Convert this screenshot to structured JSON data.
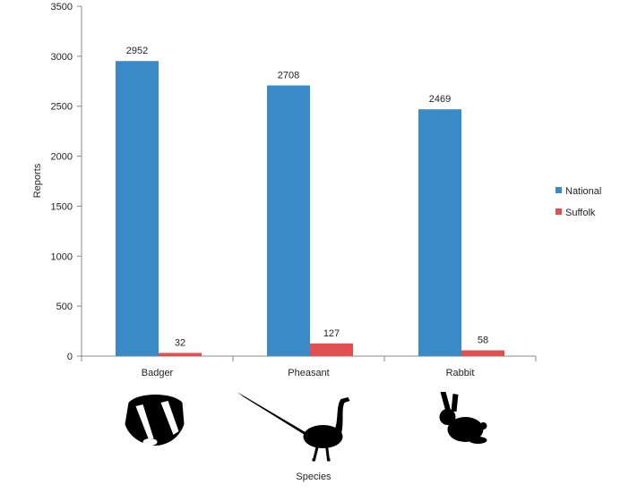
{
  "chart_data": {
    "type": "bar",
    "title": "",
    "xlabel": "Species",
    "ylabel": "Reports",
    "categories": [
      "Badger",
      "Pheasant",
      "Rabbit"
    ],
    "series": [
      {
        "name": "National",
        "values": [
          2952,
          2708,
          2469
        ],
        "color": "#3a8ac8"
      },
      {
        "name": "Suffolk",
        "values": [
          32,
          127,
          58
        ],
        "color": "#e05050"
      }
    ],
    "ylim": [
      0,
      3500
    ],
    "yticks": [
      0,
      500,
      1000,
      1500,
      2000,
      2500,
      3000,
      3500
    ],
    "grid": false,
    "legend_position": "right",
    "category_icons": [
      "badger-silhouette",
      "pheasant-silhouette",
      "rabbit-silhouette"
    ]
  }
}
